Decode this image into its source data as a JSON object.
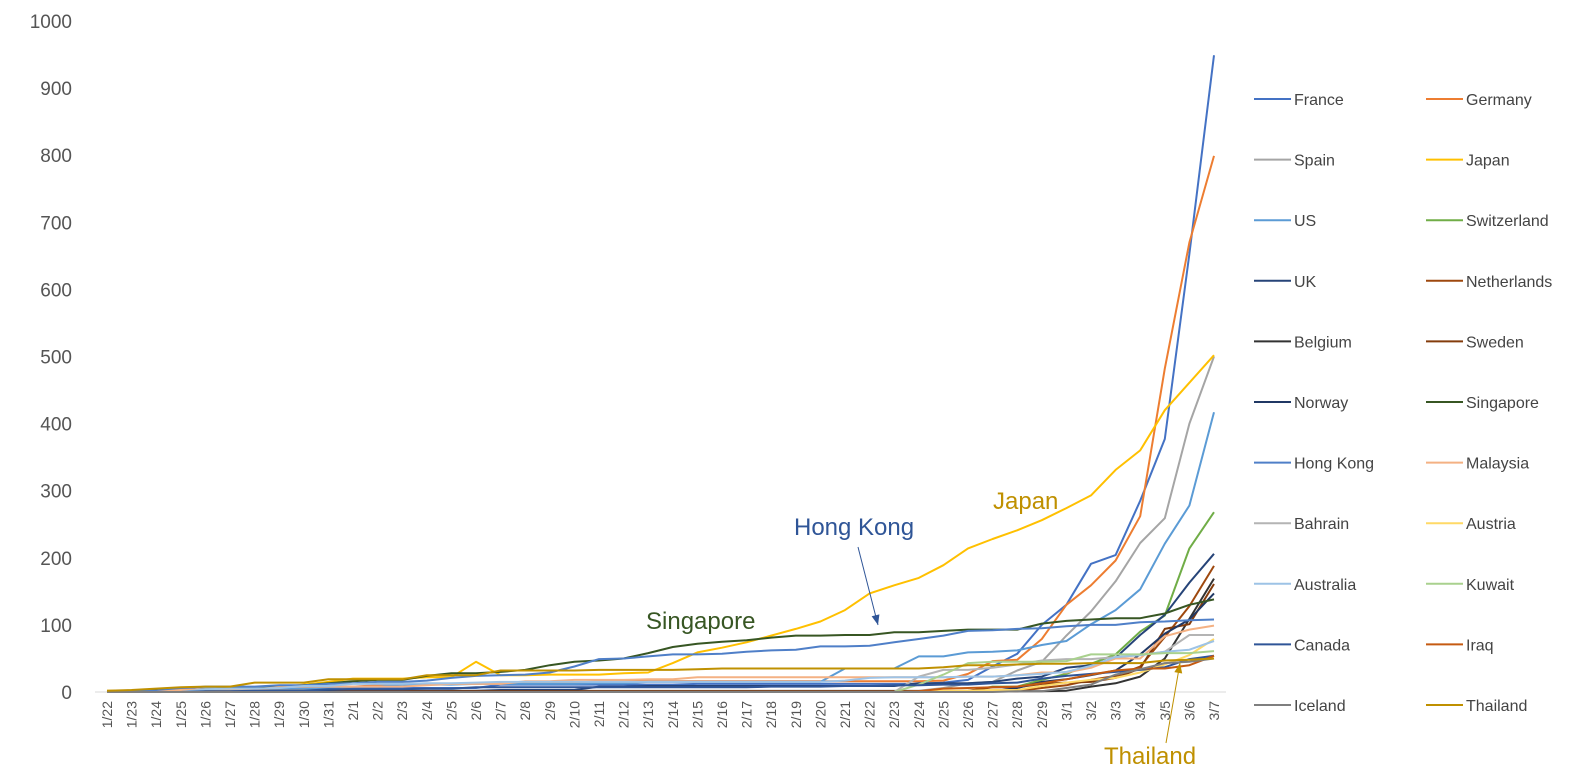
{
  "chart_data": {
    "type": "line",
    "title": "",
    "xlabel": "",
    "ylabel": "",
    "ylim": [
      0,
      1000
    ],
    "y_ticks": [
      0,
      100,
      200,
      300,
      400,
      500,
      600,
      700,
      800,
      900,
      1000
    ],
    "grid": false,
    "legend_position": "right",
    "x": [
      "1/22",
      "1/23",
      "1/24",
      "1/25",
      "1/26",
      "1/27",
      "1/28",
      "1/29",
      "1/30",
      "1/31",
      "2/1",
      "2/2",
      "2/3",
      "2/4",
      "2/5",
      "2/6",
      "2/7",
      "2/8",
      "2/9",
      "2/10",
      "2/11",
      "2/12",
      "2/13",
      "2/14",
      "2/15",
      "2/16",
      "2/17",
      "2/18",
      "2/19",
      "2/20",
      "2/21",
      "2/22",
      "2/23",
      "2/24",
      "2/25",
      "2/26",
      "2/27",
      "2/28",
      "2/29",
      "3/1",
      "3/2",
      "3/3",
      "3/4",
      "3/5",
      "3/6",
      "3/7"
    ],
    "series": [
      {
        "name": "France",
        "color": "#4472C4",
        "values": [
          0,
          0,
          0,
          3,
          3,
          3,
          4,
          5,
          5,
          6,
          6,
          6,
          6,
          6,
          6,
          6,
          11,
          11,
          11,
          11,
          11,
          11,
          11,
          11,
          12,
          12,
          12,
          12,
          12,
          12,
          12,
          12,
          12,
          12,
          14,
          18,
          38,
          57,
          100,
          130,
          191,
          204,
          285,
          377,
          653,
          949
        ]
      },
      {
        "name": "Germany",
        "color": "#ED7D31",
        "values": [
          0,
          0,
          0,
          0,
          0,
          0,
          4,
          4,
          4,
          5,
          8,
          10,
          12,
          12,
          12,
          12,
          13,
          13,
          14,
          14,
          16,
          16,
          16,
          16,
          16,
          16,
          16,
          16,
          16,
          16,
          16,
          16,
          16,
          16,
          17,
          27,
          46,
          48,
          79,
          130,
          159,
          196,
          262,
          482,
          670,
          799
        ]
      },
      {
        "name": "Spain",
        "color": "#A5A5A5",
        "values": [
          0,
          0,
          0,
          0,
          0,
          0,
          0,
          0,
          0,
          0,
          1,
          1,
          1,
          1,
          1,
          1,
          1,
          1,
          2,
          2,
          2,
          2,
          2,
          2,
          2,
          2,
          2,
          2,
          2,
          2,
          2,
          2,
          2,
          2,
          6,
          13,
          15,
          32,
          45,
          84,
          120,
          165,
          222,
          259,
          400,
          500
        ]
      },
      {
        "name": "Japan",
        "color": "#FFC000",
        "values": [
          2,
          2,
          2,
          2,
          4,
          4,
          7,
          7,
          11,
          15,
          20,
          20,
          20,
          22,
          22,
          45,
          25,
          25,
          26,
          26,
          26,
          28,
          29,
          43,
          59,
          66,
          74,
          84,
          94,
          105,
          122,
          147,
          159,
          170,
          189,
          214,
          228,
          241,
          256,
          274,
          293,
          331,
          360,
          420,
          461,
          502
        ]
      },
      {
        "name": "US",
        "color": "#5B9BD5",
        "values": [
          1,
          1,
          2,
          2,
          5,
          5,
          5,
          5,
          5,
          6,
          8,
          8,
          11,
          11,
          11,
          12,
          12,
          12,
          12,
          12,
          13,
          13,
          15,
          15,
          15,
          15,
          15,
          15,
          15,
          15,
          35,
          35,
          35,
          53,
          53,
          59,
          60,
          62,
          70,
          76,
          101,
          122,
          153,
          221,
          278,
          417
        ]
      },
      {
        "name": "Switzerland",
        "color": "#70AD47",
        "values": [
          0,
          0,
          0,
          0,
          0,
          0,
          0,
          0,
          0,
          0,
          0,
          0,
          0,
          0,
          0,
          0,
          0,
          0,
          0,
          0,
          0,
          0,
          0,
          0,
          0,
          0,
          0,
          0,
          0,
          0,
          0,
          0,
          0,
          0,
          1,
          1,
          8,
          8,
          18,
          27,
          42,
          56,
          90,
          114,
          214,
          268
        ]
      },
      {
        "name": "UK",
        "color": "#264478",
        "values": [
          0,
          0,
          0,
          0,
          0,
          0,
          0,
          0,
          0,
          2,
          2,
          2,
          2,
          2,
          2,
          2,
          3,
          3,
          3,
          3,
          8,
          8,
          9,
          9,
          9,
          9,
          9,
          9,
          9,
          9,
          9,
          9,
          9,
          13,
          13,
          13,
          15,
          20,
          23,
          36,
          40,
          51,
          85,
          115,
          163,
          206
        ]
      },
      {
        "name": "Netherlands",
        "color": "#9E480E",
        "values": [
          0,
          0,
          0,
          0,
          0,
          0,
          0,
          0,
          0,
          0,
          0,
          0,
          0,
          0,
          0,
          0,
          0,
          0,
          0,
          0,
          0,
          0,
          0,
          0,
          0,
          0,
          0,
          0,
          0,
          0,
          0,
          0,
          0,
          0,
          0,
          0,
          1,
          1,
          6,
          10,
          18,
          24,
          38,
          82,
          128,
          188
        ]
      },
      {
        "name": "Belgium",
        "color": "#333333",
        "values": [
          0,
          0,
          0,
          0,
          0,
          0,
          0,
          0,
          0,
          0,
          0,
          0,
          0,
          0,
          1,
          1,
          1,
          1,
          1,
          1,
          1,
          1,
          1,
          1,
          1,
          1,
          1,
          1,
          1,
          1,
          1,
          1,
          1,
          1,
          1,
          1,
          1,
          1,
          1,
          2,
          8,
          13,
          23,
          50,
          109,
          169
        ]
      },
      {
        "name": "Sweden",
        "color": "#843C0C",
        "values": [
          0,
          0,
          0,
          0,
          0,
          0,
          0,
          0,
          0,
          0,
          1,
          1,
          1,
          1,
          1,
          1,
          1,
          1,
          1,
          1,
          1,
          1,
          1,
          1,
          1,
          1,
          1,
          1,
          1,
          1,
          1,
          1,
          1,
          1,
          1,
          2,
          7,
          7,
          12,
          14,
          15,
          21,
          35,
          94,
          101,
          161
        ]
      },
      {
        "name": "Norway",
        "color": "#203864",
        "values": [
          0,
          0,
          0,
          0,
          0,
          0,
          0,
          0,
          0,
          0,
          0,
          0,
          0,
          0,
          0,
          0,
          0,
          0,
          0,
          0,
          0,
          0,
          0,
          0,
          0,
          0,
          0,
          0,
          0,
          0,
          0,
          0,
          0,
          0,
          0,
          1,
          1,
          6,
          15,
          19,
          25,
          32,
          56,
          87,
          108,
          147
        ]
      },
      {
        "name": "Singapore",
        "color": "#375623",
        "values": [
          0,
          1,
          3,
          3,
          4,
          5,
          7,
          7,
          10,
          13,
          16,
          18,
          18,
          24,
          28,
          28,
          30,
          33,
          40,
          45,
          47,
          50,
          58,
          67,
          72,
          75,
          77,
          81,
          84,
          84,
          85,
          85,
          89,
          89,
          91,
          93,
          93,
          93,
          102,
          106,
          108,
          110,
          110,
          117,
          130,
          138
        ]
      },
      {
        "name": "Hong Kong",
        "color": "#4F7FC8",
        "values": [
          0,
          2,
          2,
          5,
          8,
          8,
          8,
          10,
          10,
          12,
          13,
          15,
          15,
          17,
          21,
          24,
          25,
          26,
          29,
          38,
          49,
          50,
          53,
          56,
          56,
          57,
          60,
          62,
          63,
          68,
          68,
          69,
          74,
          79,
          84,
          91,
          92,
          94,
          95,
          98,
          100,
          100,
          104,
          105,
          107,
          108
        ]
      },
      {
        "name": "Malaysia",
        "color": "#F4B183",
        "values": [
          0,
          0,
          0,
          3,
          4,
          4,
          4,
          7,
          8,
          8,
          8,
          8,
          8,
          10,
          12,
          12,
          12,
          16,
          16,
          18,
          18,
          18,
          19,
          19,
          22,
          22,
          22,
          22,
          22,
          22,
          22,
          22,
          22,
          22,
          22,
          23,
          23,
          25,
          29,
          29,
          36,
          50,
          50,
          83,
          93,
          99
        ]
      },
      {
        "name": "Bahrain",
        "color": "#B4B4B4",
        "values": [
          0,
          0,
          0,
          0,
          0,
          0,
          0,
          0,
          0,
          0,
          0,
          0,
          0,
          0,
          0,
          0,
          0,
          0,
          0,
          0,
          0,
          0,
          0,
          0,
          0,
          0,
          0,
          0,
          0,
          0,
          0,
          0,
          0,
          23,
          33,
          33,
          36,
          41,
          47,
          49,
          49,
          52,
          55,
          60,
          85,
          85
        ]
      },
      {
        "name": "Austria",
        "color": "#FFD966",
        "values": [
          0,
          0,
          0,
          0,
          0,
          0,
          0,
          0,
          0,
          0,
          0,
          0,
          0,
          0,
          0,
          0,
          0,
          0,
          0,
          0,
          0,
          0,
          0,
          0,
          0,
          0,
          0,
          0,
          0,
          0,
          0,
          0,
          0,
          0,
          2,
          2,
          3,
          3,
          9,
          14,
          18,
          21,
          29,
          41,
          55,
          79
        ]
      },
      {
        "name": "Australia",
        "color": "#9DC3E6",
        "values": [
          0,
          0,
          0,
          0,
          4,
          5,
          5,
          6,
          9,
          9,
          12,
          12,
          12,
          13,
          13,
          14,
          15,
          15,
          15,
          15,
          15,
          15,
          15,
          15,
          15,
          15,
          15,
          15,
          15,
          15,
          17,
          21,
          22,
          22,
          22,
          23,
          23,
          25,
          27,
          30,
          39,
          52,
          55,
          60,
          63,
          76
        ]
      },
      {
        "name": "Kuwait",
        "color": "#A9D18E",
        "values": [
          0,
          0,
          0,
          0,
          0,
          0,
          0,
          0,
          0,
          0,
          0,
          0,
          0,
          0,
          0,
          0,
          0,
          0,
          0,
          0,
          0,
          0,
          0,
          0,
          0,
          0,
          0,
          0,
          0,
          0,
          0,
          0,
          0,
          11,
          26,
          43,
          45,
          45,
          45,
          46,
          56,
          56,
          56,
          58,
          58,
          61
        ]
      },
      {
        "name": "Canada",
        "color": "#2F5597",
        "values": [
          0,
          0,
          0,
          0,
          1,
          1,
          2,
          2,
          2,
          4,
          4,
          4,
          4,
          5,
          5,
          7,
          7,
          7,
          7,
          7,
          7,
          7,
          7,
          7,
          7,
          7,
          7,
          8,
          8,
          8,
          9,
          9,
          10,
          10,
          11,
          11,
          13,
          14,
          20,
          24,
          27,
          30,
          33,
          37,
          49,
          54
        ]
      },
      {
        "name": "Iraq",
        "color": "#C55A11",
        "values": [
          0,
          0,
          0,
          0,
          0,
          0,
          0,
          0,
          0,
          0,
          0,
          0,
          0,
          0,
          0,
          0,
          0,
          0,
          0,
          0,
          0,
          0,
          0,
          0,
          0,
          0,
          0,
          0,
          0,
          0,
          0,
          0,
          0,
          1,
          5,
          6,
          7,
          8,
          13,
          19,
          26,
          32,
          35,
          35,
          40,
          54
        ]
      },
      {
        "name": "Iceland",
        "color": "#7F7F7F",
        "values": [
          0,
          0,
          0,
          0,
          0,
          0,
          0,
          0,
          0,
          0,
          0,
          0,
          0,
          0,
          0,
          0,
          0,
          0,
          0,
          0,
          0,
          0,
          0,
          0,
          0,
          0,
          0,
          0,
          0,
          0,
          0,
          0,
          0,
          0,
          0,
          0,
          0,
          1,
          1,
          6,
          11,
          26,
          34,
          43,
          45,
          50
        ]
      },
      {
        "name": "Thailand",
        "color": "#BF9000",
        "values": [
          2,
          3,
          5,
          7,
          8,
          8,
          14,
          14,
          14,
          19,
          19,
          19,
          19,
          25,
          25,
          25,
          32,
          32,
          32,
          32,
          33,
          33,
          33,
          33,
          34,
          35,
          35,
          35,
          35,
          35,
          35,
          35,
          35,
          35,
          37,
          40,
          40,
          41,
          42,
          42,
          43,
          43,
          43,
          47,
          48,
          50
        ]
      }
    ],
    "annotations": [
      {
        "text": "Japan",
        "color": "#BF9000"
      },
      {
        "text": "Hong Kong",
        "color": "#2F5597"
      },
      {
        "text": "Singapore",
        "color": "#375623"
      },
      {
        "text": "Thailand",
        "color": "#BF9000"
      }
    ]
  }
}
